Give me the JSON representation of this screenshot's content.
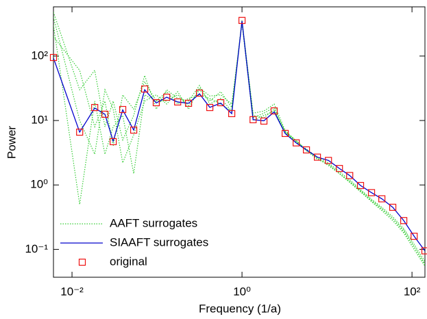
{
  "chart_data": {
    "type": "line",
    "xlabel": "Frequency (1/a)",
    "ylabel": "Power",
    "xscale": "log",
    "yscale": "log",
    "xlim": [
      0.00605,
      142
    ],
    "ylim": [
      0.037,
      580
    ],
    "xticks": [
      {
        "value": 0.01,
        "label": "10⁻²"
      },
      {
        "value": 1,
        "label": "10⁰"
      },
      {
        "value": 100,
        "label": "10²"
      }
    ],
    "yticks": [
      {
        "value": 0.1,
        "label": "10⁻¹"
      },
      {
        "value": 1,
        "label": "10⁰"
      },
      {
        "value": 10,
        "label": "10¹"
      },
      {
        "value": 100,
        "label": "10²"
      }
    ],
    "legend": "lower left",
    "x": [
      0.00605,
      0.0123,
      0.0185,
      0.0244,
      0.0305,
      0.0395,
      0.0532,
      0.0716,
      0.098,
      0.13,
      0.175,
      0.235,
      0.316,
      0.418,
      0.562,
      0.757,
      1,
      1.35,
      1.81,
      2.39,
      3.22,
      4.34,
      5.73,
      7.71,
      10.4,
      14.0,
      18.5,
      24.8,
      33.4,
      44.2,
      59.4,
      80.0,
      106,
      142
    ],
    "series": [
      {
        "name": "AAFT surrogates",
        "color": "#33cc33",
        "style": "dotted",
        "lines": [
          [
            480,
            30,
            60,
            8,
            20,
            5,
            12,
            50,
            15,
            30,
            22,
            20,
            35,
            18,
            22,
            14,
            360,
            12,
            11,
            15,
            6.8,
            4.7,
            3.5,
            2.6,
            2.1,
            1.5,
            1.1,
            0.8,
            0.55,
            0.4,
            0.28,
            0.18,
            0.1,
            0.055
          ],
          [
            300,
            0.5,
            20,
            3,
            8,
            12,
            1.5,
            25,
            20,
            20,
            25,
            17,
            30,
            20,
            28,
            16,
            340,
            11,
            13,
            16,
            6.5,
            4.6,
            3.4,
            2.6,
            2.0,
            1.5,
            1.1,
            0.78,
            0.56,
            0.42,
            0.3,
            0.19,
            0.11,
            0.06
          ],
          [
            200,
            60,
            8,
            20,
            4,
            25,
            15,
            40,
            20,
            28,
            18,
            22,
            25,
            22,
            18,
            14,
            350,
            13,
            14,
            18,
            7,
            4.8,
            3.6,
            2.7,
            2.2,
            1.6,
            1.2,
            0.85,
            0.6,
            0.45,
            0.32,
            0.21,
            0.12,
            0.065
          ],
          [
            400,
            10,
            3,
            30,
            15,
            2.2,
            6,
            20,
            25,
            18,
            28,
            15,
            32,
            24,
            25,
            18,
            320,
            10,
            12,
            14,
            6.6,
            4.9,
            3.4,
            2.5,
            2.1,
            1.5,
            1.15,
            0.82,
            0.58,
            0.43,
            0.3,
            0.2,
            0.11,
            0.058
          ]
        ]
      },
      {
        "name": "SIAAFT surrogates",
        "color": "#0000cc",
        "style": "solid",
        "values": [
          93,
          6.6,
          15.6,
          12.5,
          4.8,
          14.6,
          7.1,
          30,
          18.7,
          23,
          19.4,
          18.5,
          26,
          16,
          18.6,
          12.8,
          350,
          10.3,
          9.9,
          13.6,
          6.3,
          4.5,
          3.5,
          2.7,
          2.4,
          1.8,
          1.4,
          0.98,
          0.76,
          0.61,
          0.45,
          0.28,
          0.16,
          0.095
        ]
      },
      {
        "name": "original",
        "color": "#ee1111",
        "style": "square",
        "values": [
          95,
          6.6,
          15.9,
          12.5,
          4.7,
          14.8,
          7.1,
          30.8,
          18.9,
          23,
          19.4,
          18.5,
          26.6,
          15.9,
          18.9,
          12.8,
          357,
          10.3,
          9.8,
          14.1,
          6.3,
          4.5,
          3.5,
          2.7,
          2.4,
          1.8,
          1.4,
          0.98,
          0.76,
          0.61,
          0.45,
          0.28,
          0.16,
          0.095
        ]
      }
    ]
  }
}
